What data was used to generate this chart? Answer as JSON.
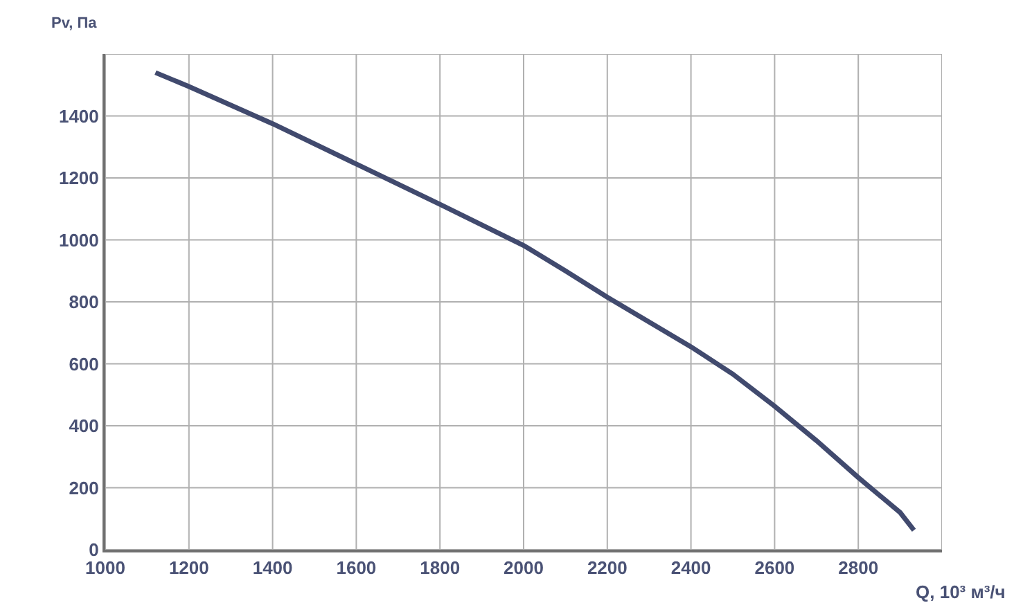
{
  "chart_data": {
    "type": "line",
    "xlabel": "Q, 10³ м³/ч",
    "ylabel": "Pv, Па",
    "x": [
      1120,
      1200,
      1400,
      1600,
      1800,
      2000,
      2100,
      2200,
      2400,
      2500,
      2600,
      2700,
      2800,
      2900,
      2933
    ],
    "series": [
      {
        "color": "#414a6e",
        "values": [
          1540,
          1495,
          1375,
          1245,
          1115,
          982,
          900,
          815,
          655,
          567,
          463,
          352,
          233,
          120,
          63
        ]
      }
    ],
    "xlim": [
      1000,
      3000
    ],
    "ylim": [
      0,
      1600
    ],
    "xticks": [
      1000,
      1200,
      1400,
      1600,
      1800,
      2000,
      2200,
      2400,
      2600,
      2800,
      {
        "value": 3000,
        "label": null
      }
    ],
    "yticks": [
      0,
      200,
      400,
      600,
      800,
      1000,
      1200,
      1400,
      {
        "value": 1600,
        "label": null
      }
    ],
    "grid": true,
    "legend": false,
    "marker": "none",
    "line_style": "solid"
  }
}
